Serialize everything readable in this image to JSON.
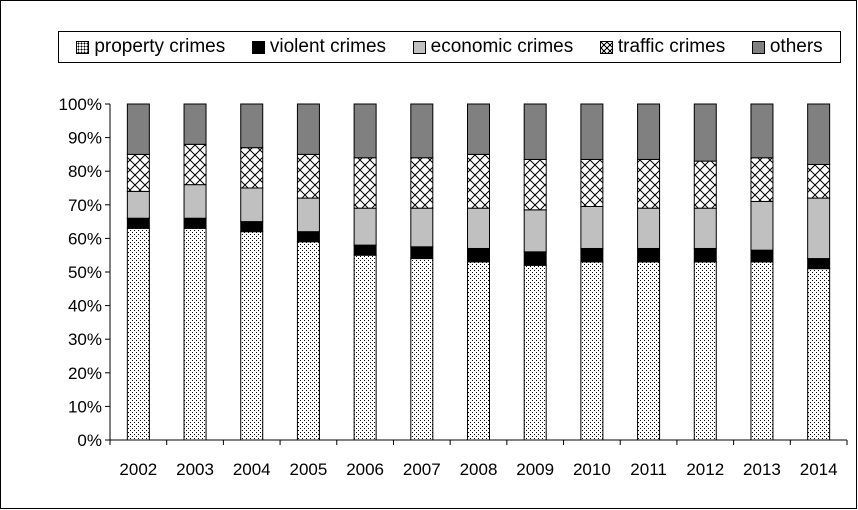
{
  "chart_data": {
    "type": "bar",
    "stacked": true,
    "percent": true,
    "categories": [
      "2002",
      "2003",
      "2004",
      "2005",
      "2006",
      "2007",
      "2008",
      "2009",
      "2010",
      "2011",
      "2012",
      "2013",
      "2014"
    ],
    "series": [
      {
        "name": "property crimes",
        "pattern": "dots",
        "values": [
          63,
          63,
          62,
          59,
          55,
          54,
          53,
          52,
          53,
          53,
          53,
          53,
          51
        ]
      },
      {
        "name": "violent crimes",
        "pattern": "solid-black",
        "values": [
          3,
          3,
          3,
          3,
          3,
          3.5,
          4,
          4,
          4,
          4,
          4,
          3.5,
          3
        ]
      },
      {
        "name": "economic crimes",
        "pattern": "light-gray",
        "values": [
          8,
          10,
          10,
          10,
          11,
          11.5,
          12,
          12.5,
          12.5,
          12,
          12,
          14.5,
          18
        ]
      },
      {
        "name": "traffic crimes",
        "pattern": "crosshatch",
        "values": [
          11,
          12,
          12,
          13,
          15,
          15,
          16,
          15,
          14,
          14.5,
          14,
          13,
          10
        ]
      },
      {
        "name": "others",
        "pattern": "dark-gray",
        "values": [
          15,
          12,
          13,
          15,
          16,
          16,
          15,
          16.5,
          16.5,
          16.5,
          17,
          16,
          18
        ]
      }
    ],
    "colors": {
      "solid-black": "#000000",
      "light-gray": "#c0c0c0",
      "dark-gray": "#808080"
    },
    "y_ticks": [
      "0%",
      "10%",
      "20%",
      "30%",
      "40%",
      "50%",
      "60%",
      "70%",
      "80%",
      "90%",
      "100%"
    ],
    "ylim": [
      0,
      100
    ],
    "grid": false,
    "legend_position": "top"
  }
}
